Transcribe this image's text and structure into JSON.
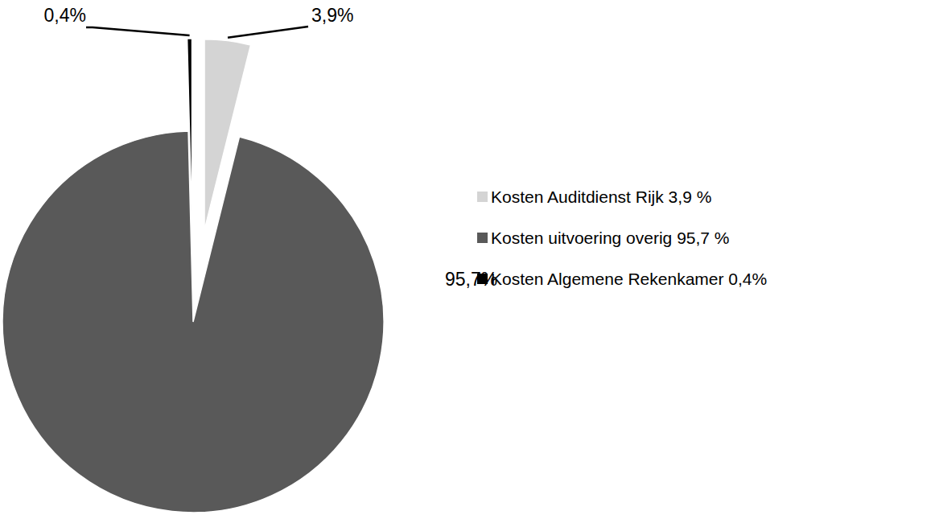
{
  "chart_data": {
    "type": "pie",
    "categories": [
      "Kosten Auditdienst Rijk 3,9 %",
      "Kosten uitvoering overig 95,7 %",
      "Kosten Algemene Rekenkamer 0,4%"
    ],
    "values": [
      3.9,
      95.7,
      0.4
    ],
    "value_labels": [
      "3,9%",
      "95,7%",
      "0,4%"
    ],
    "colors": [
      "#d4d4d4",
      "#595959",
      "#000000"
    ],
    "data_labels": true,
    "legend": "right"
  }
}
